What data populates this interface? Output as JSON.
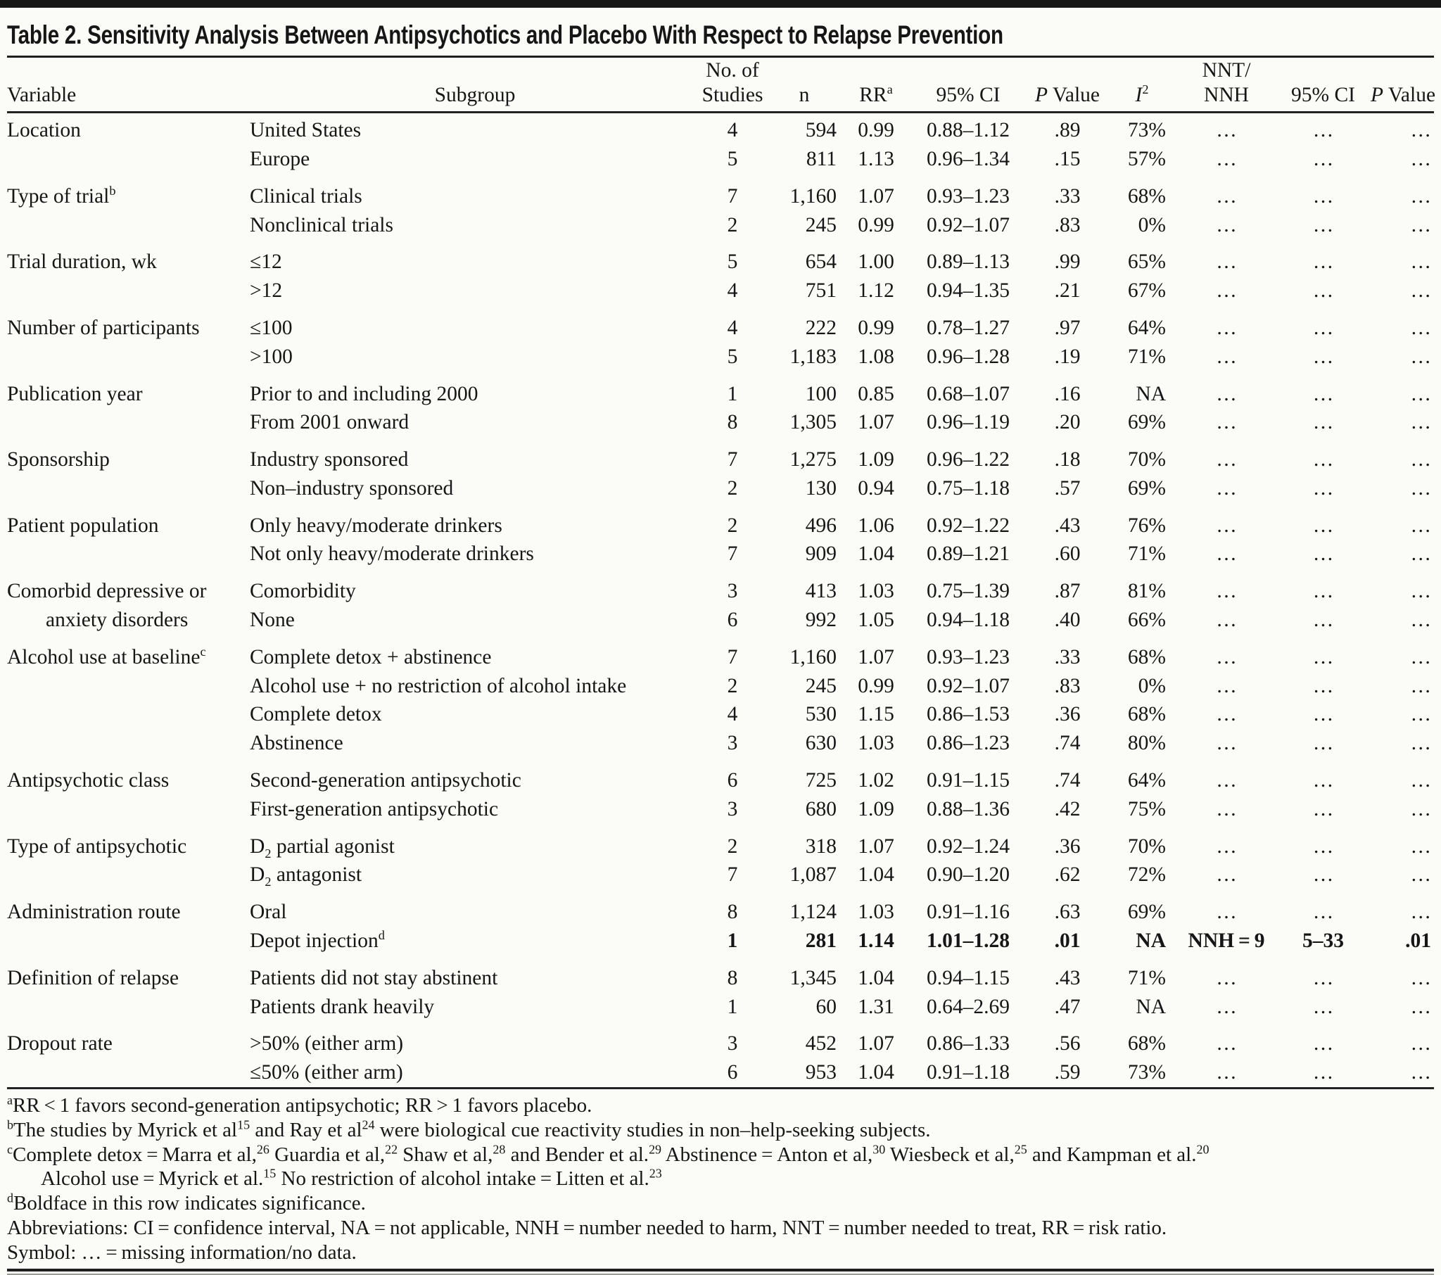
{
  "title": "Table 2. Sensitivity Analysis Between Antipsychotics and Placebo With Respect to Relapse Prevention",
  "table": {
    "header": {
      "studies_top": "No. of",
      "nnt_top": "NNT/",
      "cols": {
        "variable": "Variable",
        "subgroup": "Subgroup",
        "studies": "Studies",
        "n": "n",
        "rr": "RR^{a}",
        "ci": "95% CI",
        "p": "@{P} Value",
        "i2": "@{I}^{2}",
        "nnt": "NNH",
        "ci2": "95% CI",
        "p2": "@{P} Value"
      }
    },
    "groups": [
      {
        "variable": "Location",
        "rows": [
          {
            "subgroup": "United States",
            "cells": [
              "4",
              "594",
              "0.99",
              "0.88–1.12",
              ".89",
              "73%",
              "…",
              "…",
              "…"
            ]
          },
          {
            "subgroup": "Europe",
            "cells": [
              "5",
              "811",
              "1.13",
              "0.96–1.34",
              ".15",
              "57%",
              "…",
              "…",
              "…"
            ]
          }
        ]
      },
      {
        "variable": "Type of trial^{b}",
        "rows": [
          {
            "subgroup": "Clinical trials",
            "cells": [
              "7",
              "1,160",
              "1.07",
              "0.93–1.23",
              ".33",
              "68%",
              "…",
              "…",
              "…"
            ]
          },
          {
            "subgroup": "Nonclinical trials",
            "cells": [
              "2",
              "245",
              "0.99",
              "0.92–1.07",
              ".83",
              "0%",
              "…",
              "…",
              "…"
            ]
          }
        ]
      },
      {
        "variable": "Trial duration, wk",
        "rows": [
          {
            "subgroup": "≤12",
            "cells": [
              "5",
              "654",
              "1.00",
              "0.89–1.13",
              ".99",
              "65%",
              "…",
              "…",
              "…"
            ]
          },
          {
            "subgroup": ">12",
            "cells": [
              "4",
              "751",
              "1.12",
              "0.94–1.35",
              ".21",
              "67%",
              "…",
              "…",
              "…"
            ]
          }
        ]
      },
      {
        "variable": "Number of participants",
        "rows": [
          {
            "subgroup": "≤100",
            "cells": [
              "4",
              "222",
              "0.99",
              "0.78–1.27",
              ".97",
              "64%",
              "…",
              "…",
              "…"
            ]
          },
          {
            "subgroup": ">100",
            "cells": [
              "5",
              "1,183",
              "1.08",
              "0.96–1.28",
              ".19",
              "71%",
              "…",
              "…",
              "…"
            ]
          }
        ]
      },
      {
        "variable": "Publication year",
        "rows": [
          {
            "subgroup": "Prior to and including 2000",
            "cells": [
              "1",
              "100",
              "0.85",
              "0.68–1.07",
              ".16",
              "NA",
              "…",
              "…",
              "…"
            ]
          },
          {
            "subgroup": "From 2001 onward",
            "cells": [
              "8",
              "1,305",
              "1.07",
              "0.96–1.19",
              ".20",
              "69%",
              "…",
              "…",
              "…"
            ]
          }
        ]
      },
      {
        "variable": "Sponsorship",
        "rows": [
          {
            "subgroup": "Industry sponsored",
            "cells": [
              "7",
              "1,275",
              "1.09",
              "0.96–1.22",
              ".18",
              "70%",
              "…",
              "…",
              "…"
            ]
          },
          {
            "subgroup": "Non–industry sponsored",
            "cells": [
              "2",
              "130",
              "0.94",
              "0.75–1.18",
              ".57",
              "69%",
              "…",
              "…",
              "…"
            ]
          }
        ]
      },
      {
        "variable": "Patient population",
        "rows": [
          {
            "subgroup": "Only heavy/moderate drinkers",
            "cells": [
              "2",
              "496",
              "1.06",
              "0.92–1.22",
              ".43",
              "76%",
              "…",
              "…",
              "…"
            ]
          },
          {
            "subgroup": "Not only heavy/moderate drinkers",
            "cells": [
              "7",
              "909",
              "1.04",
              "0.89–1.21",
              ".60",
              "71%",
              "…",
              "…",
              "…"
            ]
          }
        ]
      },
      {
        "variable": "Comorbid depressive or",
        "variable_cont": "anxiety disorders",
        "rows": [
          {
            "subgroup": "Comorbidity",
            "cells": [
              "3",
              "413",
              "1.03",
              "0.75–1.39",
              ".87",
              "81%",
              "…",
              "…",
              "…"
            ]
          },
          {
            "subgroup": "None",
            "cells": [
              "6",
              "992",
              "1.05",
              "0.94–1.18",
              ".40",
              "66%",
              "…",
              "…",
              "…"
            ]
          }
        ]
      },
      {
        "variable": "Alcohol use at baseline^{c}",
        "rows": [
          {
            "subgroup": "Complete detox + abstinence",
            "cells": [
              "7",
              "1,160",
              "1.07",
              "0.93–1.23",
              ".33",
              "68%",
              "…",
              "…",
              "…"
            ]
          },
          {
            "subgroup": "Alcohol use + no restriction of alcohol intake",
            "cells": [
              "2",
              "245",
              "0.99",
              "0.92–1.07",
              ".83",
              "0%",
              "…",
              "…",
              "…"
            ]
          },
          {
            "subgroup": "Complete detox",
            "cells": [
              "4",
              "530",
              "1.15",
              "0.86–1.53",
              ".36",
              "68%",
              "…",
              "…",
              "…"
            ]
          },
          {
            "subgroup": "Abstinence",
            "cells": [
              "3",
              "630",
              "1.03",
              "0.86–1.23",
              ".74",
              "80%",
              "…",
              "…",
              "…"
            ]
          }
        ]
      },
      {
        "variable": "Antipsychotic class",
        "rows": [
          {
            "subgroup": "Second-generation antipsychotic",
            "cells": [
              "6",
              "725",
              "1.02",
              "0.91–1.15",
              ".74",
              "64%",
              "…",
              "…",
              "…"
            ]
          },
          {
            "subgroup": "First-generation antipsychotic",
            "cells": [
              "3",
              "680",
              "1.09",
              "0.88–1.36",
              ".42",
              "75%",
              "…",
              "…",
              "…"
            ]
          }
        ]
      },
      {
        "variable": "Type of antipsychotic",
        "rows": [
          {
            "subgroup": "D~{2} partial agonist",
            "cells": [
              "2",
              "318",
              "1.07",
              "0.92–1.24",
              ".36",
              "70%",
              "…",
              "…",
              "…"
            ]
          },
          {
            "subgroup": "D~{2} antagonist",
            "cells": [
              "7",
              "1,087",
              "1.04",
              "0.90–1.20",
              ".62",
              "72%",
              "…",
              "…",
              "…"
            ]
          }
        ]
      },
      {
        "variable": "Administration route",
        "rows": [
          {
            "subgroup": "Oral",
            "cells": [
              "8",
              "1,124",
              "1.03",
              "0.91–1.16",
              ".63",
              "69%",
              "…",
              "…",
              "…"
            ]
          },
          {
            "subgroup": "Depot injection^{d}",
            "bold": true,
            "cells": [
              "1",
              "281",
              "1.14",
              "1.01–1.28",
              ".01",
              "NA",
              "NNH = 9",
              "5–33",
              ".01"
            ]
          }
        ]
      },
      {
        "variable": "Definition of relapse",
        "rows": [
          {
            "subgroup": "Patients did not stay abstinent",
            "cells": [
              "8",
              "1,345",
              "1.04",
              "0.94–1.15",
              ".43",
              "71%",
              "…",
              "…",
              "…"
            ]
          },
          {
            "subgroup": "Patients drank heavily",
            "cells": [
              "1",
              "60",
              "1.31",
              "0.64–2.69",
              ".47",
              "NA",
              "…",
              "…",
              "…"
            ]
          }
        ]
      },
      {
        "variable": "Dropout rate",
        "rows": [
          {
            "subgroup": ">50% (either arm)",
            "cells": [
              "3",
              "452",
              "1.07",
              "0.86–1.33",
              ".56",
              "68%",
              "…",
              "…",
              "…"
            ]
          },
          {
            "subgroup": "≤50% (either arm)",
            "cells": [
              "6",
              "953",
              "1.04",
              "0.91–1.18",
              ".59",
              "73%",
              "…",
              "…",
              "…"
            ]
          }
        ]
      }
    ]
  },
  "footnotes": [
    {
      "indent": false,
      "text": "^{a}RR < 1 favors second-generation antipsychotic; RR > 1 favors placebo."
    },
    {
      "indent": false,
      "text": "^{b}The studies by Myrick et al^{15} and Ray et al^{24} were biological cue reactivity studies in non–help-seeking subjects."
    },
    {
      "indent": false,
      "text": "^{c}Complete detox = Marra et al,^{26} Guardia et al,^{22} Shaw et al,^{28} and Bender et al.^{29} Abstinence = Anton et al,^{30} Wiesbeck et al,^{25} and Kampman et al.^{20}"
    },
    {
      "indent": true,
      "text": "Alcohol use = Myrick et al.^{15} No restriction of alcohol intake = Litten et al.^{23}"
    },
    {
      "indent": false,
      "text": "^{d}Boldface in this row indicates significance."
    },
    {
      "indent": false,
      "text": "Abbreviations: CI = confidence interval, NA = not applicable, NNH = number needed to harm, NNT = number needed to treat, RR = risk ratio."
    },
    {
      "indent": false,
      "text": "Symbol: … = missing information/no data."
    }
  ]
}
